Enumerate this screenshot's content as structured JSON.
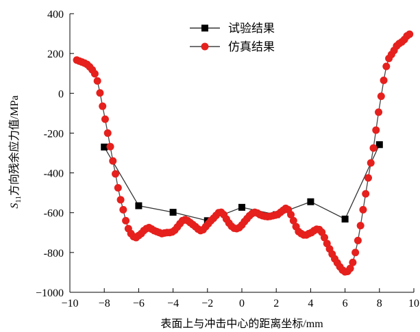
{
  "chart_data": {
    "type": "line",
    "xlabel": "表面上与冲击中心的距离坐标/mm",
    "ylabel_prefix": "S",
    "ylabel_subscript": "11",
    "ylabel_rest": "方向残余应力值/MPa",
    "xlim": [
      -10,
      10
    ],
    "ylim": [
      -1000,
      400
    ],
    "x_ticks": [
      -10,
      -8,
      -6,
      -4,
      -2,
      0,
      2,
      4,
      6,
      8,
      10
    ],
    "y_ticks": [
      400,
      200,
      0,
      -200,
      -400,
      -600,
      -800,
      -1000
    ],
    "x_tick_labels": [
      "−10",
      "−8",
      "−6",
      "−4",
      "−2",
      "0",
      "2",
      "4",
      "6",
      "8",
      "10"
    ],
    "y_tick_labels": [
      "400",
      "200",
      "0",
      "-200",
      "-400",
      "-600",
      "-800",
      "−1000"
    ],
    "grid": false,
    "legend_position": "top-center",
    "series": [
      {
        "name": "试验结果",
        "marker": "square",
        "color": "#000000",
        "line_color": "#333333",
        "points": [
          [
            -8,
            -270
          ],
          [
            -6,
            -565
          ],
          [
            -4,
            -598
          ],
          [
            -2,
            -640
          ],
          [
            0,
            -573
          ],
          [
            2,
            -610
          ],
          [
            4,
            -545
          ],
          [
            6,
            -632
          ],
          [
            8,
            -258
          ]
        ]
      },
      {
        "name": "仿真结果",
        "marker": "circle",
        "color": "#e5201d",
        "line_color": "#444444",
        "points": [
          [
            -9.6,
            167
          ],
          [
            -9.45,
            162
          ],
          [
            -9.3,
            157
          ],
          [
            -9.15,
            152
          ],
          [
            -9.0,
            145
          ],
          [
            -8.85,
            133
          ],
          [
            -8.7,
            118
          ],
          [
            -8.55,
            98
          ],
          [
            -8.4,
            62
          ],
          [
            -8.25,
            2
          ],
          [
            -8.1,
            -65
          ],
          [
            -7.95,
            -130
          ],
          [
            -7.8,
            -200
          ],
          [
            -7.65,
            -268
          ],
          [
            -7.5,
            -340
          ],
          [
            -7.35,
            -405
          ],
          [
            -7.2,
            -475
          ],
          [
            -7.05,
            -535
          ],
          [
            -6.9,
            -585
          ],
          [
            -6.75,
            -640
          ],
          [
            -6.6,
            -680
          ],
          [
            -6.45,
            -705
          ],
          [
            -6.3,
            -720
          ],
          [
            -6.15,
            -725
          ],
          [
            -6.0,
            -715
          ],
          [
            -5.85,
            -705
          ],
          [
            -5.7,
            -690
          ],
          [
            -5.55,
            -680
          ],
          [
            -5.4,
            -675
          ],
          [
            -5.25,
            -682
          ],
          [
            -5.1,
            -690
          ],
          [
            -4.95,
            -695
          ],
          [
            -4.8,
            -700
          ],
          [
            -4.65,
            -705
          ],
          [
            -4.5,
            -702
          ],
          [
            -4.35,
            -700
          ],
          [
            -4.2,
            -700
          ],
          [
            -4.05,
            -697
          ],
          [
            -3.9,
            -688
          ],
          [
            -3.75,
            -672
          ],
          [
            -3.6,
            -655
          ],
          [
            -3.45,
            -640
          ],
          [
            -3.3,
            -635
          ],
          [
            -3.15,
            -640
          ],
          [
            -3.0,
            -650
          ],
          [
            -2.85,
            -660
          ],
          [
            -2.7,
            -670
          ],
          [
            -2.55,
            -682
          ],
          [
            -2.4,
            -690
          ],
          [
            -2.25,
            -685
          ],
          [
            -2.1,
            -670
          ],
          [
            -1.95,
            -655
          ],
          [
            -1.8,
            -640
          ],
          [
            -1.65,
            -628
          ],
          [
            -1.5,
            -614
          ],
          [
            -1.35,
            -600
          ],
          [
            -1.2,
            -598
          ],
          [
            -1.05,
            -610
          ],
          [
            -0.9,
            -632
          ],
          [
            -0.75,
            -652
          ],
          [
            -0.6,
            -668
          ],
          [
            -0.45,
            -678
          ],
          [
            -0.3,
            -680
          ],
          [
            -0.15,
            -675
          ],
          [
            0.0,
            -662
          ],
          [
            0.15,
            -645
          ],
          [
            0.3,
            -630
          ],
          [
            0.45,
            -615
          ],
          [
            0.6,
            -604
          ],
          [
            0.75,
            -598
          ],
          [
            0.9,
            -602
          ],
          [
            1.05,
            -610
          ],
          [
            1.2,
            -615
          ],
          [
            1.35,
            -618
          ],
          [
            1.5,
            -620
          ],
          [
            1.65,
            -618
          ],
          [
            1.8,
            -615
          ],
          [
            1.95,
            -612
          ],
          [
            2.1,
            -608
          ],
          [
            2.25,
            -598
          ],
          [
            2.4,
            -588
          ],
          [
            2.55,
            -578
          ],
          [
            2.7,
            -585
          ],
          [
            2.85,
            -610
          ],
          [
            3.0,
            -640
          ],
          [
            3.15,
            -670
          ],
          [
            3.3,
            -695
          ],
          [
            3.45,
            -705
          ],
          [
            3.6,
            -712
          ],
          [
            3.75,
            -712
          ],
          [
            3.9,
            -705
          ],
          [
            4.05,
            -700
          ],
          [
            4.2,
            -690
          ],
          [
            4.35,
            -683
          ],
          [
            4.5,
            -685
          ],
          [
            4.65,
            -698
          ],
          [
            4.8,
            -725
          ],
          [
            4.95,
            -755
          ],
          [
            5.1,
            -782
          ],
          [
            5.25,
            -808
          ],
          [
            5.4,
            -832
          ],
          [
            5.55,
            -852
          ],
          [
            5.7,
            -872
          ],
          [
            5.85,
            -888
          ],
          [
            6.0,
            -897
          ],
          [
            6.15,
            -895
          ],
          [
            6.3,
            -880
          ],
          [
            6.45,
            -850
          ],
          [
            6.6,
            -800
          ],
          [
            6.75,
            -740
          ],
          [
            6.9,
            -665
          ],
          [
            7.05,
            -585
          ],
          [
            7.2,
            -505
          ],
          [
            7.35,
            -425
          ],
          [
            7.5,
            -350
          ],
          [
            7.65,
            -275
          ],
          [
            7.8,
            -185
          ],
          [
            7.95,
            -95
          ],
          [
            8.1,
            -15
          ],
          [
            8.25,
            65
          ],
          [
            8.4,
            135
          ],
          [
            8.55,
            175
          ],
          [
            8.7,
            195
          ],
          [
            8.85,
            215
          ],
          [
            9.0,
            238
          ],
          [
            9.15,
            250
          ],
          [
            9.3,
            258
          ],
          [
            9.45,
            270
          ],
          [
            9.6,
            288
          ],
          [
            9.75,
            297
          ]
        ]
      }
    ]
  }
}
